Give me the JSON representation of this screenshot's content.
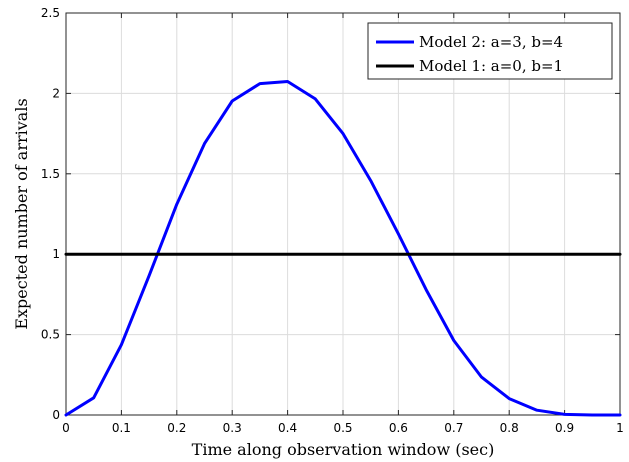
{
  "chart_data": {
    "type": "line",
    "title": "",
    "xlabel": "Time along observation window (sec)",
    "ylabel": "Expected number of arrivals",
    "xlim": [
      0,
      1
    ],
    "ylim": [
      0,
      2.5
    ],
    "x_ticks": [
      "0",
      "0.1",
      "0.2",
      "0.3",
      "0.4",
      "0.5",
      "0.6",
      "0.7",
      "0.8",
      "0.9",
      "1"
    ],
    "y_ticks": [
      "0",
      "0.5",
      "1",
      "1.5",
      "2",
      "2.5"
    ],
    "grid": true,
    "legend_position": "top-right",
    "series": [
      {
        "name": "Model 2: a=3, b=4",
        "color": "#0000ff",
        "x": [
          0,
          0.05,
          0.1,
          0.15,
          0.2,
          0.25,
          0.3,
          0.35,
          0.4,
          0.45,
          0.5,
          0.55,
          0.6,
          0.65,
          0.7,
          0.75,
          0.8,
          0.85,
          0.9,
          0.95,
          1
        ],
        "values": [
          0,
          0.107,
          0.437,
          0.866,
          1.311,
          1.688,
          1.953,
          2.061,
          2.074,
          1.966,
          1.75,
          1.458,
          1.126,
          0.78,
          0.463,
          0.236,
          0.102,
          0.03,
          0.004,
          0.0001,
          0
        ]
      },
      {
        "name": "Model 1: a=0, b=1",
        "color": "#000000",
        "x": [
          0,
          1
        ],
        "values": [
          1,
          1
        ]
      }
    ]
  }
}
